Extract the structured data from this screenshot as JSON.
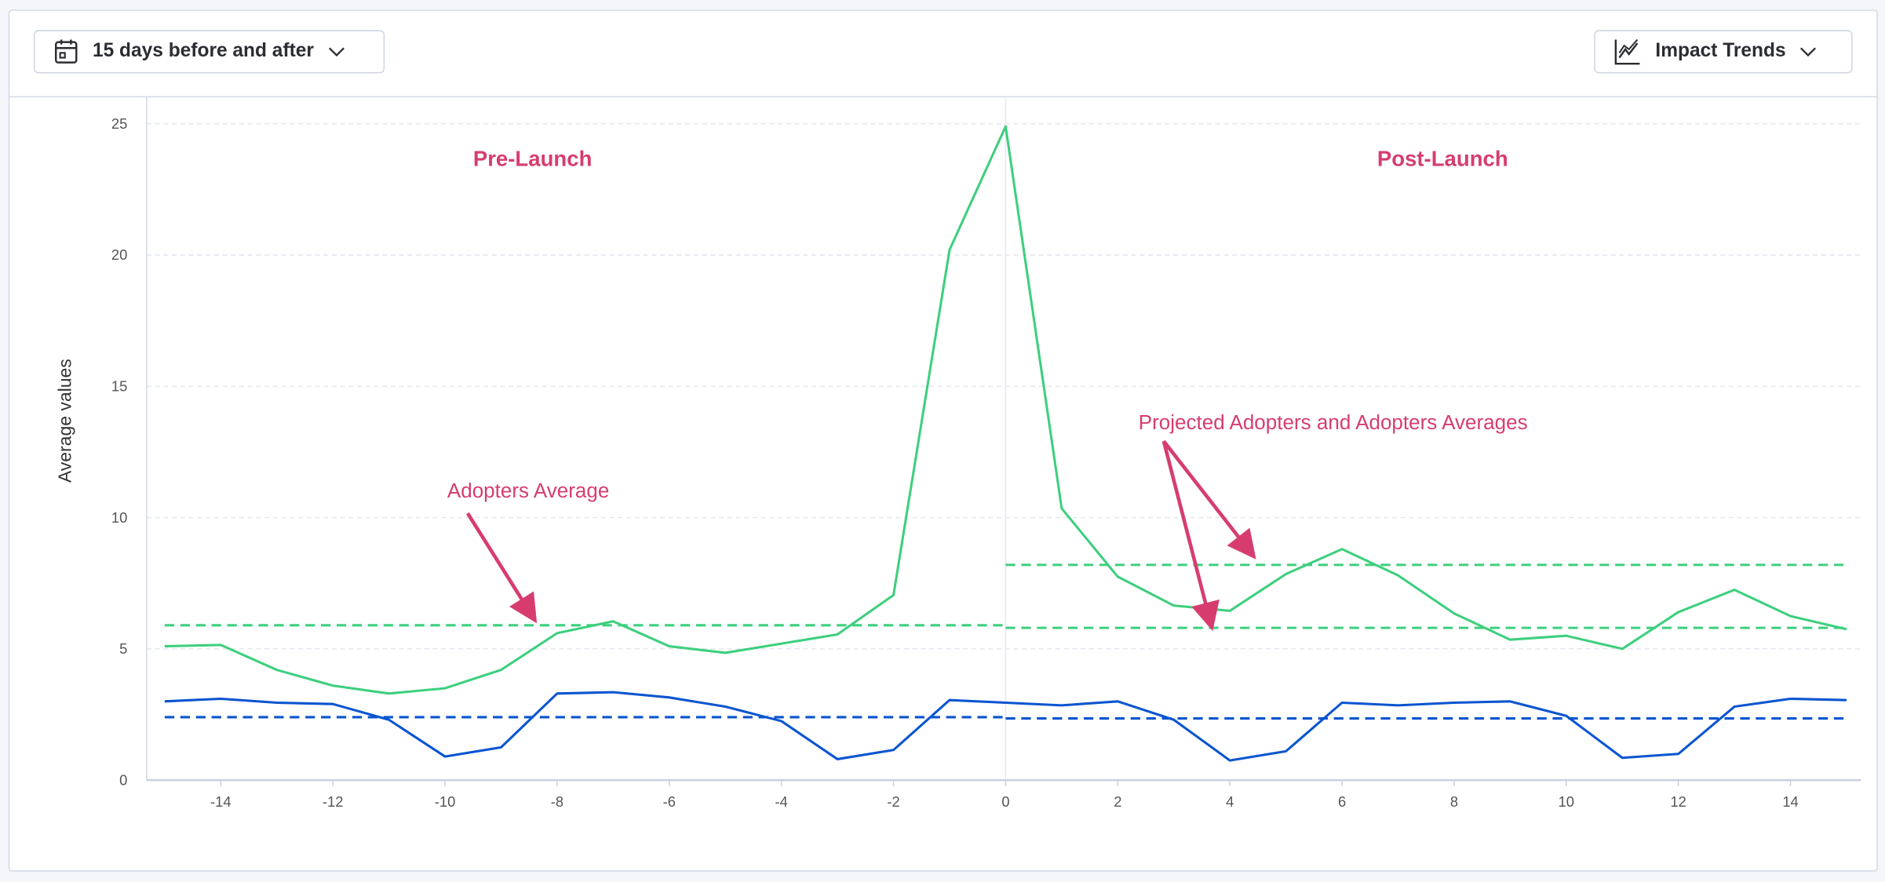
{
  "toolbar": {
    "range_label": "15 days before and after",
    "range_icon": "calendar-icon",
    "view_label": "Impact Trends",
    "view_icon": "line-chart-icon"
  },
  "colors": {
    "adopters": "#3ecf7e",
    "projected": "#0a55d0",
    "annotation": "#d63d6e"
  },
  "chart_data": {
    "type": "line",
    "ylabel": "Average values",
    "xlabel": "",
    "ylim": [
      0,
      25
    ],
    "xlim": [
      -15,
      15
    ],
    "yticks": [
      0,
      5,
      10,
      15,
      20,
      25
    ],
    "xticks": [
      -14,
      -12,
      -10,
      -8,
      -6,
      -4,
      -2,
      0,
      2,
      4,
      6,
      8,
      10,
      12,
      14
    ],
    "grid": true,
    "x": [
      -15,
      -14,
      -13,
      -12,
      -11,
      -10,
      -9,
      -8,
      -7,
      -6,
      -5,
      -4,
      -3,
      -2,
      -1,
      0,
      1,
      2,
      3,
      4,
      5,
      6,
      7,
      8,
      9,
      10,
      11,
      12,
      13,
      14,
      15
    ],
    "series": [
      {
        "color": "#3ecf7e",
        "values": [
          5.1,
          5.15,
          4.2,
          3.6,
          3.3,
          3.5,
          4.2,
          5.6,
          6.05,
          5.1,
          4.85,
          5.2,
          5.55,
          7.05,
          20.2,
          24.9,
          10.35,
          7.75,
          6.65,
          6.45,
          7.85,
          8.8,
          7.8,
          6.35,
          5.35,
          5.5,
          5.0,
          6.4,
          7.25,
          6.25,
          5.75
        ]
      },
      {
        "color": "#0a55d0",
        "values": [
          3.0,
          3.1,
          2.95,
          2.9,
          2.3,
          0.9,
          1.25,
          3.3,
          3.35,
          3.15,
          2.8,
          2.25,
          0.8,
          1.15,
          3.05,
          2.95,
          2.85,
          3.0,
          2.3,
          0.75,
          1.1,
          2.95,
          2.85,
          2.95,
          3.0,
          2.45,
          0.85,
          1.0,
          2.8,
          3.1,
          3.05
        ]
      }
    ],
    "averages": [
      {
        "color": "#3ecf7e",
        "from": -15,
        "to": 0,
        "value": 5.9
      },
      {
        "color": "#3ecf7e",
        "from": 0,
        "to": 15,
        "value": 8.2
      },
      {
        "color": "#3ecf7e",
        "from": 0,
        "to": 15,
        "value": 5.8
      },
      {
        "color": "#0a55d0",
        "from": -15,
        "to": 0,
        "value": 2.4
      },
      {
        "color": "#0a55d0",
        "from": 0,
        "to": 15,
        "value": 2.35
      }
    ],
    "vline": 0,
    "annotations": {
      "pre": "Pre-Launch",
      "post": "Post-Launch",
      "adopters_avg": "Adopters Average",
      "projected_avg": "Projected Adopters and Adopters Averages"
    }
  }
}
